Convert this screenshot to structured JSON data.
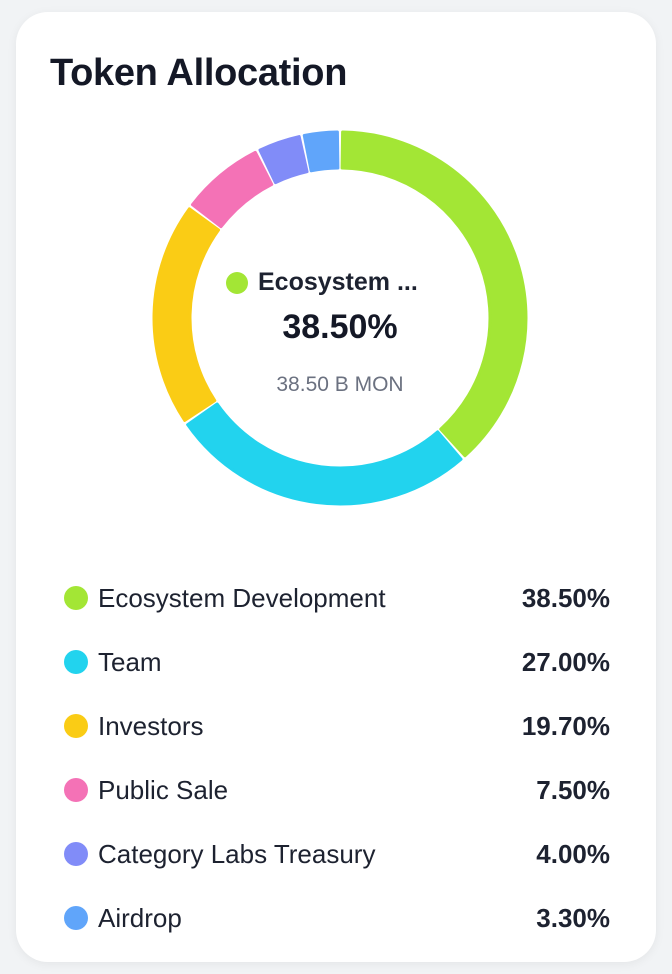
{
  "card": {
    "title": "Token Allocation"
  },
  "center": {
    "name": "Ecosystem ...",
    "percent": "38.50%",
    "amount": "38.50 B MON",
    "color": "#a3e635"
  },
  "chart_data": {
    "type": "pie",
    "title": "Token Allocation",
    "categories": [
      "Ecosystem Development",
      "Team",
      "Investors",
      "Public Sale",
      "Category Labs Treasury",
      "Airdrop"
    ],
    "values": [
      38.5,
      27.0,
      19.7,
      7.5,
      4.0,
      3.3
    ],
    "labels": [
      "38.50%",
      "27.00%",
      "19.70%",
      "7.50%",
      "4.00%",
      "3.30%"
    ],
    "colors": [
      "#a3e635",
      "#22d3ee",
      "#facc15",
      "#f472b6",
      "#818cf8",
      "#60a5fa"
    ],
    "legend": "bottom",
    "donut": true
  }
}
